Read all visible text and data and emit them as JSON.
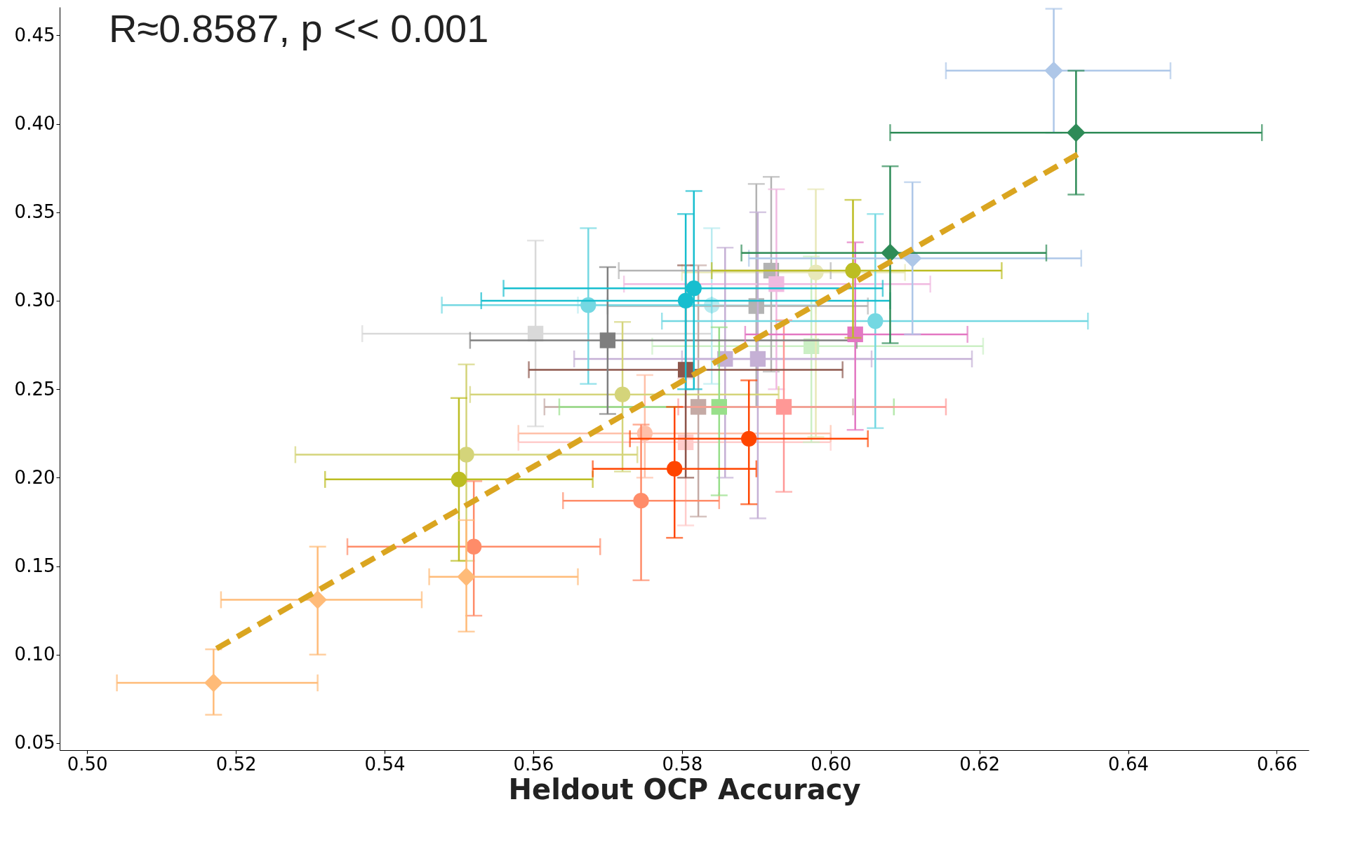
{
  "chart_data": {
    "type": "scatter",
    "xlabel": "Heldout OCP Accuracy",
    "annotations": [
      "R≈0.8587, p << 0.001"
    ],
    "xlim": [
      0.4963,
      0.6643
    ],
    "xticks": [
      {
        "value": 0.5,
        "label": "0.50"
      },
      0.52,
      0.54,
      0.56,
      0.58,
      {
        "value": 0.6,
        "label": "0.60"
      },
      0.62,
      0.64,
      0.66
    ],
    "ylim": [
      0.046,
      0.466
    ],
    "yticks": [
      0.05,
      {
        "value": 0.1,
        "label": "0.10"
      },
      0.15,
      {
        "value": 0.2,
        "label": "0.20"
      },
      0.25,
      {
        "value": 0.3,
        "label": "0.30"
      },
      0.35,
      {
        "value": 0.4,
        "label": "0.40"
      },
      0.45
    ],
    "grid": false,
    "series": [
      {
        "color": "#d9d9d9",
        "marker": "square",
        "x": [
          0.5603
        ],
        "values": [
          0.2814
        ],
        "errors": [
          [
            0.229,
            0.334
          ]
        ],
        "xerrors": [
          [
            0.537,
            0.584
          ]
        ]
      },
      {
        "color": "#ffcccb",
        "marker": "square",
        "x": [
          0.5805
        ],
        "values": [
          0.22
        ],
        "errors": [
          [
            0.173,
            0.256
          ]
        ],
        "xerrors": [
          [
            0.558,
            0.6
          ]
        ]
      },
      {
        "color": "#cbefc4",
        "marker": "square",
        "x": [
          0.5974
        ],
        "values": [
          0.2743
        ],
        "errors": [
          [
            0.22,
            0.325
          ]
        ],
        "xerrors": [
          [
            0.576,
            0.6205
          ]
        ]
      },
      {
        "color": "#b9ebf0",
        "marker": "circle",
        "x": [
          0.584
        ],
        "values": [
          0.2975
        ],
        "errors": [
          [
            0.253,
            0.341
          ]
        ],
        "xerrors": [
          [
            0.566,
            0.598
          ]
        ]
      },
      {
        "color": "#e8e8b8",
        "marker": "circle",
        "x": [
          0.598
        ],
        "values": [
          0.316
        ],
        "errors": [
          [
            0.223,
            0.363
          ]
        ],
        "xerrors": [
          [
            0.58,
            0.61
          ]
        ]
      },
      {
        "color": "#ffc0a8",
        "marker": "circle",
        "x": [
          0.575
        ],
        "values": [
          0.225
        ],
        "errors": [
          [
            0.2,
            0.258
          ]
        ],
        "xerrors": [
          [
            0.558,
            0.6
          ]
        ]
      },
      {
        "color": "#b3b3b3",
        "marker": "square",
        "x": [
          0.592,
          0.59
        ],
        "values": [
          0.317,
          0.297
        ],
        "errors": [
          [
            0.26,
            0.37
          ],
          [
            0.24,
            0.366
          ]
        ],
        "xerrors": [
          [
            0.5715,
            0.6
          ],
          [
            0.57,
            0.605
          ]
        ]
      },
      {
        "color": "#c4aaa5",
        "marker": "square",
        "x": [
          0.5822
        ],
        "values": [
          0.24
        ],
        "errors": [
          [
            0.178,
            0.32
          ]
        ],
        "xerrors": [
          [
            0.5615,
            0.603
          ]
        ]
      },
      {
        "color": "#f0b9e0",
        "marker": "square",
        "x": [
          0.5927
        ],
        "values": [
          0.3094
        ],
        "errors": [
          [
            0.25,
            0.363
          ]
        ],
        "xerrors": [
          [
            0.5722,
            0.6134
          ]
        ]
      },
      {
        "color": "#c5b0d5",
        "marker": "square",
        "x": [
          0.5902,
          0.5858
        ],
        "values": [
          0.2671,
          0.2671
        ],
        "errors": [
          [
            0.177,
            0.35
          ],
          [
            0.2,
            0.33
          ]
        ],
        "xerrors": [
          [
            0.5655,
            0.6055
          ],
          [
            0.58,
            0.619
          ]
        ]
      },
      {
        "color": "#74d8e2",
        "marker": "circle",
        "x": [
          0.5674,
          0.606
        ],
        "values": [
          0.2975,
          0.2885
        ],
        "errors": [
          [
            0.253,
            0.341
          ],
          [
            0.228,
            0.349
          ]
        ],
        "xerrors": [
          [
            0.5477,
            0.584
          ],
          [
            0.5773,
            0.6346
          ]
        ]
      },
      {
        "color": "#d4d47a",
        "marker": "circle",
        "x": [
          0.551,
          0.572
        ],
        "values": [
          0.213,
          0.247
        ],
        "errors": [
          [
            0.153,
            0.264
          ],
          [
            0.2035,
            0.288
          ]
        ],
        "xerrors": [
          [
            0.528,
            0.574
          ],
          [
            0.5515,
            0.593
          ]
        ]
      },
      {
        "color": "#ff8c69",
        "marker": "circle",
        "x": [
          0.552,
          0.5745
        ],
        "values": [
          0.161,
          0.187
        ],
        "errors": [
          [
            0.122,
            0.198
          ],
          [
            0.142,
            0.23
          ]
        ],
        "xerrors": [
          [
            0.535,
            0.569
          ],
          [
            0.564,
            0.585
          ]
        ]
      },
      {
        "color": "#98df8a",
        "marker": "square",
        "x": [
          0.585
        ],
        "values": [
          0.24
        ],
        "errors": [
          [
            0.19,
            0.285
          ]
        ],
        "xerrors": [
          [
            0.5635,
            0.6085
          ]
        ]
      },
      {
        "color": "#ff9896",
        "marker": "square",
        "x": [
          0.5937
        ],
        "values": [
          0.24
        ],
        "errors": [
          [
            0.192,
            0.289
          ]
        ],
        "xerrors": [
          [
            0.5795,
            0.6155
          ]
        ]
      },
      {
        "color": "#8c564b",
        "marker": "square",
        "x": [
          0.5805
        ],
        "values": [
          0.261
        ],
        "errors": [
          [
            0.2,
            0.32
          ]
        ],
        "xerrors": [
          [
            0.5594,
            0.6016
          ]
        ]
      },
      {
        "color": "#7f7f7f",
        "marker": "square",
        "x": [
          0.57
        ],
        "values": [
          0.2776
        ],
        "errors": [
          [
            0.236,
            0.319
          ]
        ],
        "xerrors": [
          [
            0.5515,
            0.6035
          ]
        ]
      },
      {
        "color": "#e377c2",
        "marker": "square",
        "x": [
          0.6033
        ],
        "values": [
          0.281
        ],
        "errors": [
          [
            0.227,
            0.333
          ]
        ],
        "xerrors": [
          [
            0.5885,
            0.6184
          ]
        ]
      },
      {
        "color": "#17becf",
        "marker": "circle",
        "x": [
          0.5816,
          0.5805
        ],
        "values": [
          0.307,
          0.3
        ],
        "errors": [
          [
            0.25,
            0.362
          ],
          [
            0.25,
            0.349
          ]
        ],
        "xerrors": [
          [
            0.556,
            0.607
          ],
          [
            0.553,
            0.608
          ]
        ]
      },
      {
        "color": "#bcbd22",
        "marker": "circle",
        "x": [
          0.55,
          0.603
        ],
        "values": [
          0.199,
          0.317
        ],
        "errors": [
          [
            0.153,
            0.245
          ],
          [
            0.279,
            0.357
          ]
        ],
        "xerrors": [
          [
            0.532,
            0.568
          ],
          [
            0.584,
            0.623
          ]
        ]
      },
      {
        "color": "#ff4500",
        "marker": "circle",
        "x": [
          0.579,
          0.589
        ],
        "values": [
          0.205,
          0.222
        ],
        "errors": [
          [
            0.166,
            0.24
          ],
          [
            0.185,
            0.255
          ]
        ],
        "xerrors": [
          [
            0.568,
            0.59
          ],
          [
            0.573,
            0.605
          ]
        ]
      },
      {
        "color": "#ffbb78",
        "marker": "diamond",
        "x": [
          0.517,
          0.531,
          0.551
        ],
        "values": [
          0.084,
          0.131,
          0.144
        ],
        "errors": [
          [
            0.066,
            0.103
          ],
          [
            0.1,
            0.161
          ],
          [
            0.113,
            0.176
          ]
        ],
        "xerrors": [
          [
            0.504,
            0.531
          ],
          [
            0.518,
            0.545
          ],
          [
            0.546,
            0.566
          ]
        ]
      },
      {
        "color": "#aec7e8",
        "marker": "diamond",
        "x": [
          0.63,
          0.611
        ],
        "values": [
          0.43,
          0.324
        ],
        "errors": [
          [
            0.395,
            0.465
          ],
          [
            0.281,
            0.367
          ]
        ],
        "xerrors": [
          [
            0.6155,
            0.6457
          ],
          [
            0.589,
            0.6337
          ]
        ]
      },
      {
        "color": "#2e8b57",
        "marker": "diamond",
        "x": [
          0.633,
          0.608
        ],
        "values": [
          0.395,
          0.327
        ],
        "errors": [
          [
            0.36,
            0.43
          ],
          [
            0.276,
            0.376
          ]
        ],
        "xerrors": [
          [
            0.608,
            0.658
          ],
          [
            0.588,
            0.629
          ]
        ]
      },
      {
        "type": "line",
        "color": "#daa520",
        "line_style": "dashed",
        "marker": "none",
        "x": [
          0.5174,
          0.6332
        ],
        "values": [
          0.1034,
          0.3827
        ]
      }
    ]
  }
}
